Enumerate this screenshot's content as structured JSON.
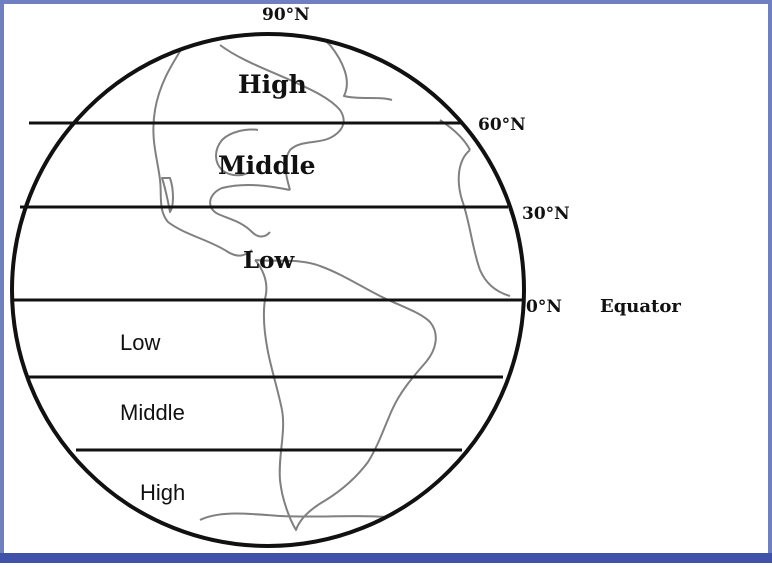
{
  "colors": {
    "frame": "#6f7fc2",
    "frame_bottom": "#3f51a8",
    "outline": "#111111",
    "coast": "#808080",
    "text": "#111111"
  },
  "latitude_lines": {
    "north_pole": "90°N",
    "n60": "60°N",
    "n30": "30°N",
    "equator_deg": "0°N",
    "equator_name": "Equator"
  },
  "zones": {
    "north": {
      "high": "High",
      "middle": "Middle",
      "low": "Low"
    },
    "south": {
      "low": "Low",
      "middle": "Middle",
      "high": "High"
    }
  }
}
